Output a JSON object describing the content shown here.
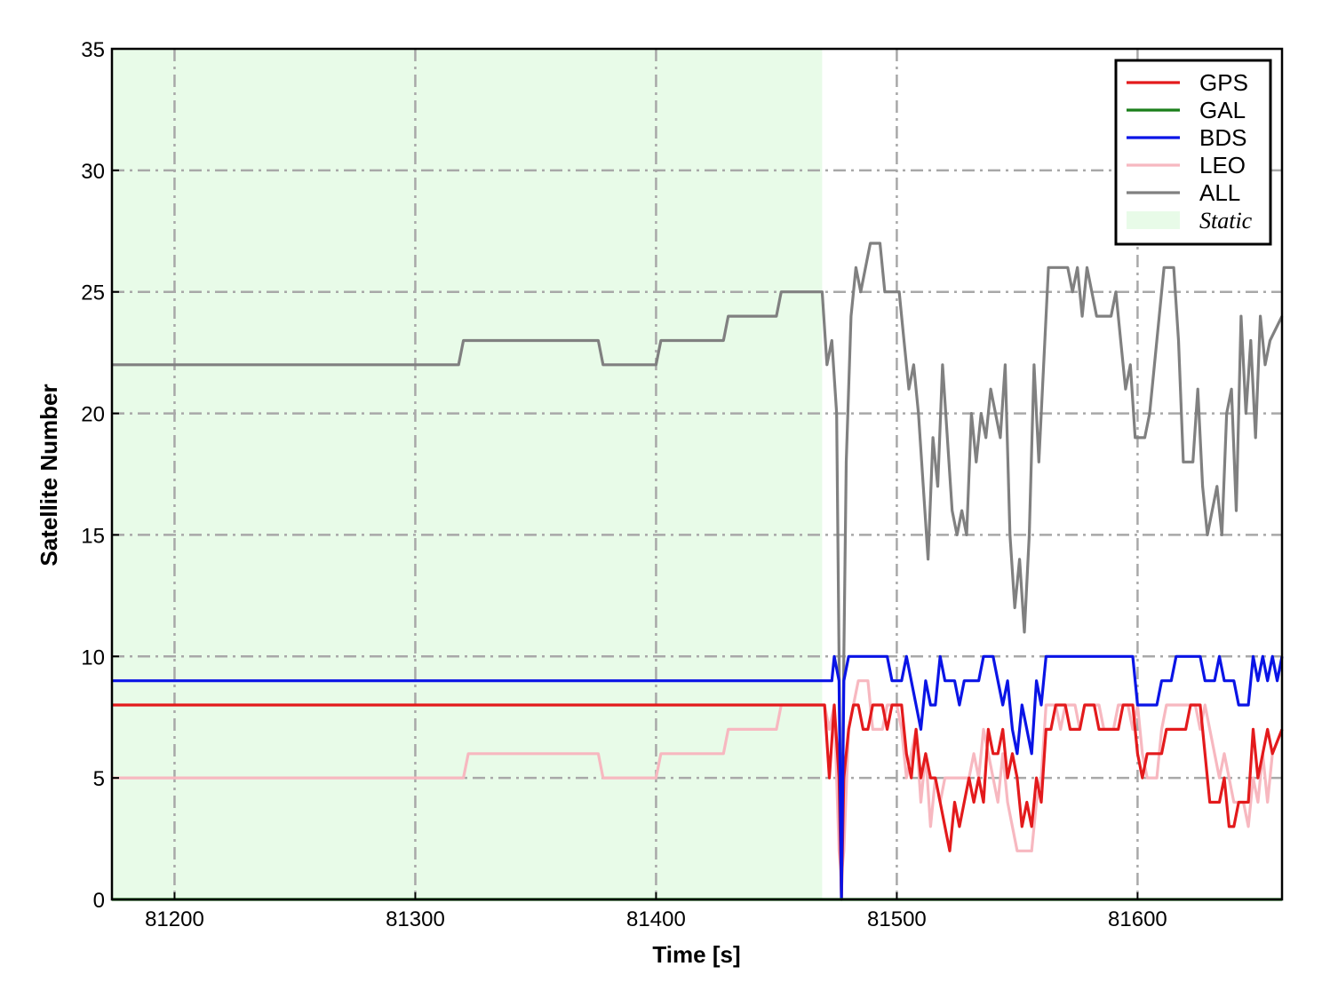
{
  "chart_data": {
    "type": "line",
    "title": "",
    "xlabel": "Time [s]",
    "ylabel": "Satellite Number",
    "xlim": [
      81174,
      81660
    ],
    "ylim": [
      0,
      35
    ],
    "xticks": [
      81200,
      81300,
      81400,
      81500,
      81600
    ],
    "yticks": [
      0,
      5,
      10,
      15,
      20,
      25,
      30,
      35
    ],
    "grid": true,
    "grid_style": "dash-dot",
    "legend_position": "top-right",
    "shaded_region": {
      "name": "Static",
      "x": [
        81174,
        81469
      ],
      "color": "#e8fbe8"
    },
    "series": [
      {
        "name": "GPS",
        "color": "#e31a1c",
        "points": [
          [
            81174,
            8
          ],
          [
            81470,
            8
          ],
          [
            81472,
            5
          ],
          [
            81474,
            8
          ],
          [
            81476,
            5
          ],
          [
            81477,
            0
          ],
          [
            81478,
            5
          ],
          [
            81480,
            7
          ],
          [
            81482,
            8
          ],
          [
            81484,
            8
          ],
          [
            81486,
            7
          ],
          [
            81488,
            7
          ],
          [
            81490,
            8
          ],
          [
            81494,
            8
          ],
          [
            81496,
            7
          ],
          [
            81498,
            8
          ],
          [
            81502,
            8
          ],
          [
            81504,
            6
          ],
          [
            81506,
            5
          ],
          [
            81508,
            7
          ],
          [
            81510,
            5
          ],
          [
            81512,
            6
          ],
          [
            81514,
            5
          ],
          [
            81516,
            5
          ],
          [
            81518,
            4
          ],
          [
            81520,
            3
          ],
          [
            81522,
            2
          ],
          [
            81524,
            4
          ],
          [
            81526,
            3
          ],
          [
            81528,
            4
          ],
          [
            81530,
            5
          ],
          [
            81532,
            4
          ],
          [
            81534,
            5
          ],
          [
            81536,
            4
          ],
          [
            81538,
            7
          ],
          [
            81540,
            6
          ],
          [
            81542,
            6
          ],
          [
            81544,
            7
          ],
          [
            81546,
            5
          ],
          [
            81548,
            6
          ],
          [
            81550,
            5
          ],
          [
            81552,
            3
          ],
          [
            81554,
            4
          ],
          [
            81556,
            3
          ],
          [
            81558,
            5
          ],
          [
            81560,
            4
          ],
          [
            81562,
            7
          ],
          [
            81564,
            7
          ],
          [
            81566,
            8
          ],
          [
            81570,
            8
          ],
          [
            81572,
            7
          ],
          [
            81576,
            7
          ],
          [
            81578,
            8
          ],
          [
            81582,
            8
          ],
          [
            81584,
            7
          ],
          [
            81592,
            7
          ],
          [
            81594,
            8
          ],
          [
            81598,
            8
          ],
          [
            81600,
            6
          ],
          [
            81602,
            5
          ],
          [
            81604,
            6
          ],
          [
            81610,
            6
          ],
          [
            81612,
            7
          ],
          [
            81620,
            7
          ],
          [
            81622,
            8
          ],
          [
            81626,
            8
          ],
          [
            81628,
            6
          ],
          [
            81630,
            4
          ],
          [
            81634,
            4
          ],
          [
            81636,
            5
          ],
          [
            81638,
            3
          ],
          [
            81640,
            3
          ],
          [
            81642,
            4
          ],
          [
            81646,
            4
          ],
          [
            81648,
            7
          ],
          [
            81650,
            5
          ],
          [
            81652,
            6
          ],
          [
            81654,
            7
          ],
          [
            81656,
            6
          ],
          [
            81660,
            7
          ]
        ]
      },
      {
        "name": "GAL",
        "color": "#1a7f1a",
        "points": [
          [
            81174,
            0
          ],
          [
            81660,
            0
          ]
        ]
      },
      {
        "name": "BDS",
        "color": "#0a14e6",
        "points": [
          [
            81174,
            9
          ],
          [
            81473,
            9
          ],
          [
            81474,
            10
          ],
          [
            81476,
            9
          ],
          [
            81477,
            0
          ],
          [
            81478,
            9
          ],
          [
            81480,
            10
          ],
          [
            81496,
            10
          ],
          [
            81498,
            9
          ],
          [
            81502,
            9
          ],
          [
            81504,
            10
          ],
          [
            81506,
            9
          ],
          [
            81508,
            8
          ],
          [
            81510,
            7
          ],
          [
            81512,
            9
          ],
          [
            81514,
            8
          ],
          [
            81516,
            8
          ],
          [
            81518,
            10
          ],
          [
            81520,
            9
          ],
          [
            81524,
            9
          ],
          [
            81526,
            8
          ],
          [
            81528,
            9
          ],
          [
            81534,
            9
          ],
          [
            81536,
            10
          ],
          [
            81540,
            10
          ],
          [
            81542,
            9
          ],
          [
            81544,
            8
          ],
          [
            81546,
            9
          ],
          [
            81548,
            7
          ],
          [
            81550,
            6
          ],
          [
            81552,
            8
          ],
          [
            81554,
            7
          ],
          [
            81556,
            6
          ],
          [
            81558,
            9
          ],
          [
            81560,
            8
          ],
          [
            81562,
            10
          ],
          [
            81598,
            10
          ],
          [
            81600,
            8
          ],
          [
            81608,
            8
          ],
          [
            81610,
            9
          ],
          [
            81614,
            9
          ],
          [
            81616,
            10
          ],
          [
            81626,
            10
          ],
          [
            81628,
            9
          ],
          [
            81632,
            9
          ],
          [
            81634,
            10
          ],
          [
            81636,
            9
          ],
          [
            81640,
            9
          ],
          [
            81642,
            8
          ],
          [
            81646,
            8
          ],
          [
            81648,
            10
          ],
          [
            81650,
            9
          ],
          [
            81652,
            10
          ],
          [
            81654,
            9
          ],
          [
            81656,
            10
          ],
          [
            81658,
            9
          ],
          [
            81660,
            10
          ]
        ]
      },
      {
        "name": "LEO",
        "color": "#f7b8c0",
        "points": [
          [
            81174,
            5
          ],
          [
            81320,
            5
          ],
          [
            81322,
            6
          ],
          [
            81376,
            6
          ],
          [
            81378,
            5
          ],
          [
            81400,
            5
          ],
          [
            81402,
            6
          ],
          [
            81428,
            6
          ],
          [
            81430,
            7
          ],
          [
            81450,
            7
          ],
          [
            81452,
            8
          ],
          [
            81470,
            8
          ],
          [
            81472,
            7
          ],
          [
            81474,
            8
          ],
          [
            81476,
            2
          ],
          [
            81477,
            1
          ],
          [
            81478,
            2
          ],
          [
            81480,
            7
          ],
          [
            81482,
            8
          ],
          [
            81484,
            9
          ],
          [
            81488,
            9
          ],
          [
            81490,
            7
          ],
          [
            81494,
            7
          ],
          [
            81496,
            8
          ],
          [
            81500,
            8
          ],
          [
            81502,
            7
          ],
          [
            81504,
            5
          ],
          [
            81506,
            6
          ],
          [
            81508,
            7
          ],
          [
            81510,
            4
          ],
          [
            81512,
            6
          ],
          [
            81514,
            3
          ],
          [
            81516,
            5
          ],
          [
            81518,
            4
          ],
          [
            81520,
            5
          ],
          [
            81530,
            5
          ],
          [
            81532,
            6
          ],
          [
            81534,
            5
          ],
          [
            81536,
            7
          ],
          [
            81538,
            6
          ],
          [
            81540,
            5
          ],
          [
            81542,
            4
          ],
          [
            81544,
            6
          ],
          [
            81546,
            4
          ],
          [
            81548,
            3
          ],
          [
            81550,
            2
          ],
          [
            81556,
            2
          ],
          [
            81558,
            4
          ],
          [
            81560,
            5
          ],
          [
            81562,
            8
          ],
          [
            81566,
            8
          ],
          [
            81568,
            7
          ],
          [
            81570,
            8
          ],
          [
            81574,
            8
          ],
          [
            81576,
            7
          ],
          [
            81578,
            8
          ],
          [
            81584,
            8
          ],
          [
            81586,
            7
          ],
          [
            81590,
            7
          ],
          [
            81592,
            8
          ],
          [
            81596,
            8
          ],
          [
            81598,
            7
          ],
          [
            81600,
            8
          ],
          [
            81602,
            6
          ],
          [
            81604,
            5
          ],
          [
            81608,
            5
          ],
          [
            81610,
            7
          ],
          [
            81612,
            8
          ],
          [
            81624,
            8
          ],
          [
            81626,
            7
          ],
          [
            81628,
            8
          ],
          [
            81630,
            7
          ],
          [
            81632,
            6
          ],
          [
            81634,
            5
          ],
          [
            81636,
            6
          ],
          [
            81638,
            5
          ],
          [
            81640,
            4
          ],
          [
            81644,
            4
          ],
          [
            81646,
            3
          ],
          [
            81648,
            5
          ],
          [
            81650,
            4
          ],
          [
            81652,
            6
          ],
          [
            81654,
            4
          ],
          [
            81656,
            6
          ],
          [
            81660,
            7
          ]
        ]
      },
      {
        "name": "ALL",
        "color": "#808080",
        "points": [
          [
            81174,
            22
          ],
          [
            81318,
            22
          ],
          [
            81320,
            23
          ],
          [
            81376,
            23
          ],
          [
            81378,
            22
          ],
          [
            81400,
            22
          ],
          [
            81402,
            23
          ],
          [
            81428,
            23
          ],
          [
            81430,
            24
          ],
          [
            81450,
            24
          ],
          [
            81452,
            25
          ],
          [
            81469,
            25
          ],
          [
            81471,
            22
          ],
          [
            81473,
            23
          ],
          [
            81475,
            20
          ],
          [
            81477,
            0
          ],
          [
            81478,
            10
          ],
          [
            81479,
            18
          ],
          [
            81481,
            24
          ],
          [
            81483,
            26
          ],
          [
            81485,
            25
          ],
          [
            81487,
            26
          ],
          [
            81489,
            27
          ],
          [
            81493,
            27
          ],
          [
            81495,
            25
          ],
          [
            81501,
            25
          ],
          [
            81503,
            23
          ],
          [
            81505,
            21
          ],
          [
            81507,
            22
          ],
          [
            81509,
            20
          ],
          [
            81511,
            17
          ],
          [
            81513,
            14
          ],
          [
            81515,
            19
          ],
          [
            81517,
            17
          ],
          [
            81519,
            22
          ],
          [
            81521,
            19
          ],
          [
            81523,
            16
          ],
          [
            81525,
            15
          ],
          [
            81527,
            16
          ],
          [
            81529,
            15
          ],
          [
            81531,
            20
          ],
          [
            81533,
            18
          ],
          [
            81535,
            20
          ],
          [
            81537,
            19
          ],
          [
            81539,
            21
          ],
          [
            81541,
            20
          ],
          [
            81543,
            19
          ],
          [
            81545,
            22
          ],
          [
            81547,
            15
          ],
          [
            81549,
            12
          ],
          [
            81551,
            14
          ],
          [
            81553,
            11
          ],
          [
            81555,
            15
          ],
          [
            81557,
            22
          ],
          [
            81559,
            18
          ],
          [
            81561,
            22
          ],
          [
            81563,
            26
          ],
          [
            81571,
            26
          ],
          [
            81573,
            25
          ],
          [
            81575,
            26
          ],
          [
            81577,
            24
          ],
          [
            81579,
            26
          ],
          [
            81581,
            25
          ],
          [
            81583,
            24
          ],
          [
            81589,
            24
          ],
          [
            81591,
            25
          ],
          [
            81593,
            23
          ],
          [
            81595,
            21
          ],
          [
            81597,
            22
          ],
          [
            81599,
            19
          ],
          [
            81601,
            19
          ],
          [
            81603,
            19
          ],
          [
            81605,
            20
          ],
          [
            81607,
            22
          ],
          [
            81609,
            24
          ],
          [
            81611,
            26
          ],
          [
            81615,
            26
          ],
          [
            81617,
            23
          ],
          [
            81619,
            18
          ],
          [
            81623,
            18
          ],
          [
            81625,
            21
          ],
          [
            81627,
            17
          ],
          [
            81629,
            15
          ],
          [
            81633,
            17
          ],
          [
            81635,
            15
          ],
          [
            81637,
            20
          ],
          [
            81639,
            21
          ],
          [
            81641,
            16
          ],
          [
            81643,
            24
          ],
          [
            81645,
            20
          ],
          [
            81647,
            23
          ],
          [
            81649,
            19
          ],
          [
            81651,
            24
          ],
          [
            81653,
            22
          ],
          [
            81655,
            23
          ],
          [
            81660,
            24
          ]
        ]
      }
    ]
  }
}
